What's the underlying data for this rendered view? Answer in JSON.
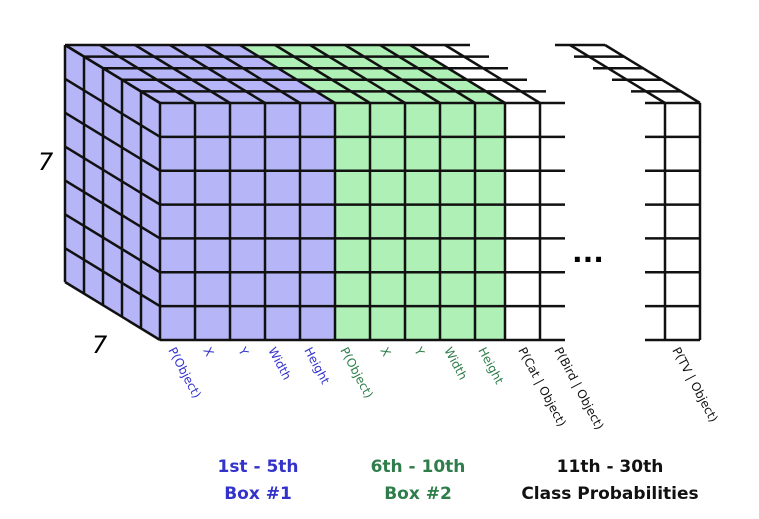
{
  "dimensions": {
    "height": "7",
    "width": "7"
  },
  "groups": [
    {
      "range": "1st - 5th",
      "name": "Box #1",
      "columns": [
        "P(Object)",
        "X",
        "Y",
        "Width",
        "Height"
      ]
    },
    {
      "range": "6th - 10th",
      "name": "Box #2",
      "columns": [
        "P(Object)",
        "X",
        "Y",
        "Width",
        "Height"
      ]
    },
    {
      "range": "11th - 30th",
      "name": "Class Probabilities",
      "columns": [
        "P(Cat | Object)",
        "P(Bird | Object)",
        "P(TV | Object)"
      ]
    }
  ],
  "ellipsis": "..."
}
